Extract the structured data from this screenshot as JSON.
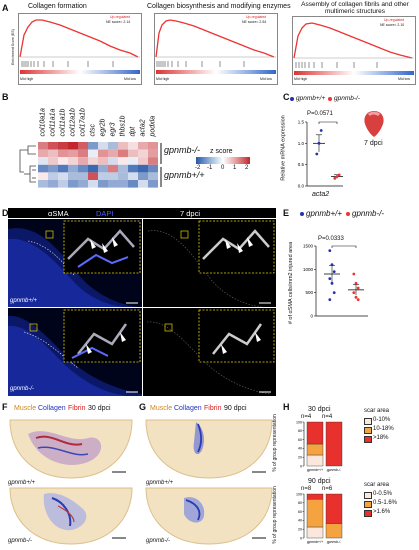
{
  "panels": {
    "A": "A",
    "B": "B",
    "C": "C",
    "D": "D",
    "E": "E",
    "F": "F",
    "G": "G",
    "H": "H"
  },
  "panelA": {
    "plots": [
      {
        "title": "Collagen formation",
        "status": "Up-regulated",
        "nes": "NE score= 2.14",
        "left_axis": "Mid high",
        "right_axis": "Mid low"
      },
      {
        "title": "Collagen biosynthesis and modifying enzymes",
        "status": "Up-regulated",
        "nes": "NE score= 2.54",
        "left_axis": "Mid high",
        "right_axis": "Mid low"
      },
      {
        "title": "Assembly of collagen fibrils and other multimeric structures",
        "status": "Up-regulated",
        "nes": "NE score= 2.10",
        "left_axis": "Mid high",
        "right_axis": "Mid low"
      }
    ],
    "ylabel": "Enrichment Score (ES)"
  },
  "panelB": {
    "genes": [
      "col10a1a",
      "col11a1a",
      "col11a1b",
      "col12a1b",
      "col17a1b",
      "ctsc",
      "egr2b",
      "egr3",
      "thbs1b",
      "dpt",
      "acta2",
      "podxla"
    ],
    "row_labels": [
      "gpnmb-/-",
      "gpnmb+/+"
    ],
    "legend_title": "z score",
    "legend_ticks": [
      "-2",
      "-1",
      "0",
      "1",
      "2"
    ]
  },
  "panelC": {
    "legend": [
      "gpnmb+/+",
      "gpnmb-/-"
    ],
    "pvalue": "P=0.0571",
    "ylabel": "Relative mRNA expression",
    "xlabel": "acta2",
    "yticks": [
      "0.0",
      "0.5",
      "1.0",
      "1.5"
    ],
    "timepoint": "7 dpci"
  },
  "panelD": {
    "stain1": "αSMA",
    "stain2": "DAPI",
    "timepoint": "7 dpci",
    "genotype_top": "gpnmb+/+",
    "genotype_bottom": "gpnmb-/-"
  },
  "panelE": {
    "legend": [
      "gpnmb+/+",
      "gpnmb-/-"
    ],
    "pvalue": "P=0.0333",
    "ylabel": "# of αSMA cells/mm2 injured area",
    "yticks": [
      "0",
      "500",
      "1000",
      "1500"
    ]
  },
  "panelF": {
    "stains": [
      "Muscle",
      "Collagen",
      "Fibrin"
    ],
    "timepoint": "30 dpci",
    "genotype_top": "gpnmb+/+",
    "genotype_bottom": "gpnmb-/-"
  },
  "panelG": {
    "stains": [
      "Muscle",
      "Collagen",
      "Fibrin"
    ],
    "timepoint": "90 dpci",
    "genotype_top": "gpnmb+/+",
    "genotype_bottom": "gpnmb-/-"
  },
  "panelH": {
    "ylabel": "% of group representation",
    "top": {
      "timepoint": "30 dpci",
      "n": [
        "n=4",
        "n=4"
      ],
      "legend_title": "scar area",
      "legend": [
        "0-10%",
        "10-18%",
        ">18%"
      ]
    },
    "bottom": {
      "timepoint": "90 dpci",
      "n": [
        "n=8",
        "n=6"
      ],
      "legend_title": "scar area",
      "legend": [
        "0-0.5%",
        "0.5-1.6%",
        ">1.6%"
      ]
    },
    "yticks": [
      "0",
      "20",
      "40",
      "60",
      "80",
      "100"
    ],
    "xlabels": [
      "gpnmb+/+",
      "gpnmb-/-"
    ]
  },
  "chart_data": [
    {
      "type": "bar",
      "panel": "C",
      "categories": [
        "gpnmb+/+",
        "gpnmb-/-"
      ],
      "values": [
        1.0,
        0.22
      ],
      "points": [
        [
          0.75,
          1.0,
          1.3
        ],
        [
          0.18,
          0.22,
          0.26
        ]
      ],
      "ylim": [
        0,
        1.5
      ],
      "xlabel": "acta2",
      "ylabel": "Relative mRNA expression"
    },
    {
      "type": "bar",
      "panel": "E",
      "categories": [
        "gpnmb+/+",
        "gpnmb-/-"
      ],
      "values": [
        900,
        560
      ],
      "points": [
        [
          1400,
          1100,
          950,
          800,
          700,
          500,
          350
        ],
        [
          900,
          700,
          600,
          500,
          400,
          350
        ]
      ],
      "ylim": [
        0,
        1500
      ],
      "ylabel": "# of αSMA cells/mm2 injured area"
    },
    {
      "type": "bar",
      "panel": "H-top",
      "categories": [
        "gpnmb+/+",
        "gpnmb-/-"
      ],
      "series": [
        {
          "name": "0-10%",
          "values": [
            25,
            0
          ]
        },
        {
          "name": "10-18%",
          "values": [
            25,
            0
          ]
        },
        {
          "name": ">18%",
          "values": [
            50,
            100
          ]
        }
      ],
      "ylim": [
        0,
        100
      ]
    },
    {
      "type": "bar",
      "panel": "H-bottom",
      "categories": [
        "gpnmb+/+",
        "gpnmb-/-"
      ],
      "series": [
        {
          "name": "0-0.5%",
          "values": [
            25,
            0
          ]
        },
        {
          "name": "0.5-1.6%",
          "values": [
            63,
            33
          ]
        },
        {
          "name": ">1.6%",
          "values": [
            12,
            67
          ]
        }
      ],
      "ylim": [
        0,
        100
      ]
    }
  ]
}
